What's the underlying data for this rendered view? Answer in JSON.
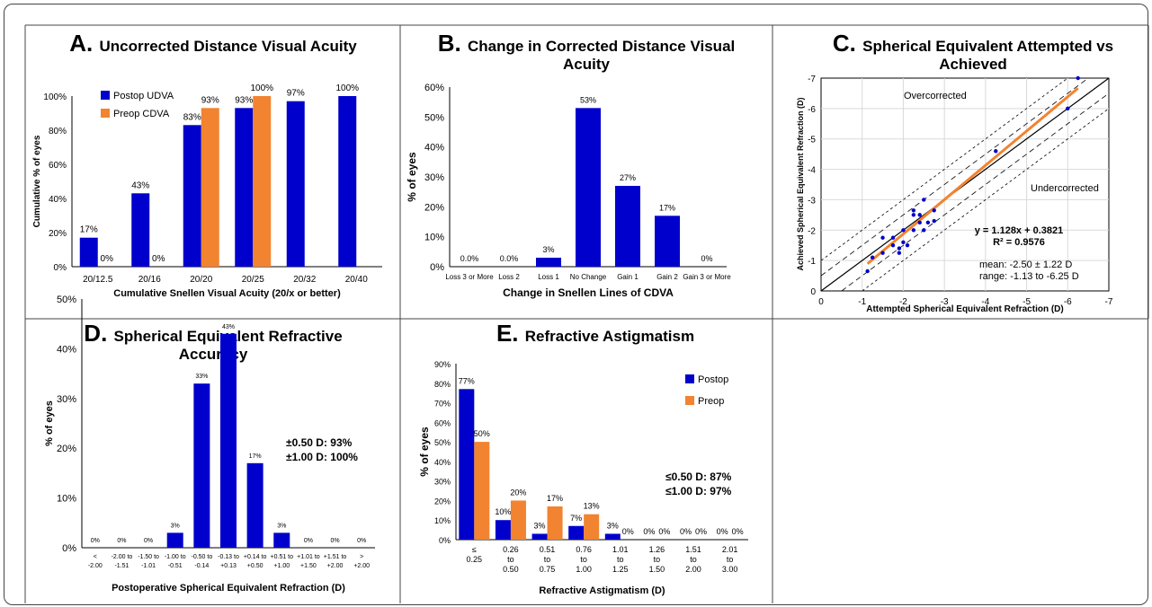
{
  "colors": {
    "blue": "#0000CC",
    "orange": "#F28330",
    "grid": "#d9d9d9",
    "line": "#000000"
  },
  "panels": [
    {
      "letter": "A",
      "title_lines": [
        "Uncorrected Distance Visual Acuity"
      ],
      "type": "bar",
      "ylabel": "Cumulative % of eyes",
      "xlabel": "Cumulative Snellen Visual Acuity (20/x or better)",
      "yticks": [
        "0%",
        "20%",
        "40%",
        "60%",
        "80%",
        "100%"
      ],
      "ymax": 100,
      "categories": [
        "20/12.5",
        "20/16",
        "20/20",
        "20/25",
        "20/32",
        "20/40"
      ],
      "series": [
        {
          "name": "Postop UDVA",
          "color": "#0000CC",
          "values": [
            17,
            43,
            83,
            93,
            97,
            100
          ],
          "labels": [
            "17%",
            "43%",
            "83%",
            "93%",
            "97%",
            "100%"
          ]
        },
        {
          "name": "Preop CDVA",
          "color": "#F28330",
          "values": [
            0,
            0,
            93,
            100,
            null,
            null
          ],
          "labels": [
            "0%",
            "0%",
            "93%",
            "100%",
            "",
            ""
          ]
        }
      ],
      "legend": [
        "Postop UDVA",
        "Preop CDVA"
      ],
      "notes": []
    },
    {
      "letter": "B",
      "title_lines": [
        "Change in Corrected Distance Visual",
        "Acuity"
      ],
      "type": "bar",
      "ylabel": "% of eyes",
      "xlabel": "Change in Snellen Lines of CDVA",
      "yticks": [
        "0%",
        "10%",
        "20%",
        "30%",
        "40%",
        "50%",
        "60%"
      ],
      "ymax": 60,
      "categories": [
        "Loss 3 or More",
        "Loss 2",
        "Loss 1",
        "No Change",
        "Gain 1",
        "Gain 2",
        "Gain 3 or More"
      ],
      "series": [
        {
          "name": "",
          "color": "#0000CC",
          "values": [
            0,
            0,
            3,
            53,
            27,
            17,
            0
          ],
          "labels": [
            "0.0%",
            "0.0%",
            "3%",
            "53%",
            "27%",
            "17%",
            "0%"
          ]
        }
      ],
      "legend": [],
      "notes": []
    },
    {
      "letter": "C",
      "title_lines": [
        "Spherical Equivalent Attempted vs",
        "Achieved"
      ],
      "type": "scatter",
      "xlabel": "Attempted Spherical Equivalent Refraction (D)",
      "ylabel": "Achieved Spherical Equivalent Refraction (D)",
      "ticks": [
        "0",
        "-1",
        "-2",
        "-3",
        "-4",
        "-5",
        "-6",
        "-7"
      ],
      "points": [
        [
          -1.13,
          -0.65
        ],
        [
          -1.25,
          -1.1
        ],
        [
          -1.5,
          -1.25
        ],
        [
          -1.5,
          -1.75
        ],
        [
          -1.75,
          -1.5
        ],
        [
          -1.75,
          -1.75
        ],
        [
          -1.9,
          -1.25
        ],
        [
          -1.9,
          -1.4
        ],
        [
          -2.0,
          -1.6
        ],
        [
          -2.0,
          -2.0
        ],
        [
          -2.1,
          -1.5
        ],
        [
          -2.25,
          -2.0
        ],
        [
          -2.25,
          -2.5
        ],
        [
          -2.25,
          -2.65
        ],
        [
          -2.4,
          -2.25
        ],
        [
          -2.4,
          -2.5
        ],
        [
          -2.5,
          -2.0
        ],
        [
          -2.5,
          -3.0
        ],
        [
          -2.6,
          -2.25
        ],
        [
          -2.75,
          -2.65
        ],
        [
          -2.75,
          -2.3
        ],
        [
          -4.25,
          -4.6
        ],
        [
          -6.0,
          -6.0
        ],
        [
          -6.25,
          -7.0
        ]
      ],
      "regression": {
        "slope": 1.128,
        "intercept": 0.3821
      },
      "annotations": {
        "over": "Overcorrected",
        "under": "Undercorrected",
        "equation": "y = 1.128x + 0.3821",
        "r2": "R² = 0.9576",
        "mean": "mean: -2.50 ± 1.22 D",
        "range": "range: -1.13 to -6.25 D"
      }
    },
    {
      "letter": "D",
      "title_lines": [
        "Spherical Equivalent Refractive",
        "Accuracy"
      ],
      "type": "bar",
      "ylabel": "% of eyes",
      "xlabel": "Postoperative Spherical Equivalent Refraction (D)",
      "yticks": [
        "0%",
        "10%",
        "20%",
        "30%",
        "40%",
        "50%"
      ],
      "ymax": 50,
      "categories": [
        [
          "<",
          "-2.00"
        ],
        [
          "-2.00 to",
          "-1.51"
        ],
        [
          "-1.50 to",
          "-1.01"
        ],
        [
          "-1.00 to",
          "-0.51"
        ],
        [
          "-0.50 to",
          "-0.14"
        ],
        [
          "-0.13 to",
          "+0.13"
        ],
        [
          "+0.14 to",
          "+0.50"
        ],
        [
          "+0.51 to",
          "+1.00"
        ],
        [
          "+1.01 to",
          "+1.50"
        ],
        [
          "+1.51 to",
          "+2.00"
        ],
        [
          ">",
          "+2.00"
        ]
      ],
      "series": [
        {
          "name": "",
          "color": "#0000CC",
          "values": [
            0,
            0,
            0,
            3,
            33,
            43,
            17,
            3,
            0,
            0,
            0
          ],
          "labels": [
            "0%",
            "0%",
            "0%",
            "3%",
            "33%",
            "43%",
            "17%",
            "3%",
            "0%",
            "0%",
            "0%"
          ]
        }
      ],
      "legend": [],
      "notes": [
        "±0.50 D: 93%",
        "±1.00 D: 100%"
      ]
    },
    {
      "letter": "E",
      "title_lines": [
        "Refractive Astigmatism"
      ],
      "type": "bar",
      "ylabel": "% of eyes",
      "xlabel": "Refractive Astigmatism (D)",
      "yticks": [
        "0%",
        "10%",
        "20%",
        "30%",
        "40%",
        "50%",
        "60%",
        "70%",
        "80%",
        "90%"
      ],
      "ymax": 90,
      "categories": [
        [
          "≤",
          "0.25"
        ],
        [
          "0.26",
          "to",
          "0.50"
        ],
        [
          "0.51",
          "to",
          "0.75"
        ],
        [
          "0.76",
          "to",
          "1.00"
        ],
        [
          "1.01",
          "to",
          "1.25"
        ],
        [
          "1.26",
          "to",
          "1.50"
        ],
        [
          "1.51",
          "to",
          "2.00"
        ],
        [
          "2.01",
          "to",
          "3.00"
        ]
      ],
      "series": [
        {
          "name": "Postop",
          "color": "#0000CC",
          "values": [
            77,
            10,
            3,
            7,
            3,
            0,
            0,
            0
          ],
          "labels": [
            "77%",
            "10%",
            "3%",
            "7%",
            "3%",
            "0%",
            "0%",
            "0%"
          ]
        },
        {
          "name": "Preop",
          "color": "#F28330",
          "values": [
            50,
            20,
            17,
            13,
            0,
            0,
            0,
            0
          ],
          "labels": [
            "50%",
            "20%",
            "17%",
            "13%",
            "0%",
            "0%",
            "0%",
            "0%"
          ]
        }
      ],
      "legend": [
        "Postop",
        "Preop"
      ],
      "notes": [
        "≤0.50 D: 87%",
        "≤1.00 D: 97%"
      ]
    }
  ],
  "chart_data": [
    {
      "type": "bar",
      "title": "Uncorrected Distance Visual Acuity",
      "xlabel": "Cumulative Snellen Visual Acuity (20/x or better)",
      "ylabel": "Cumulative % of eyes",
      "categories": [
        "20/12.5",
        "20/16",
        "20/20",
        "20/25",
        "20/32",
        "20/40"
      ],
      "series": [
        {
          "name": "Postop UDVA",
          "values": [
            17,
            43,
            83,
            93,
            97,
            100
          ]
        },
        {
          "name": "Preop CDVA",
          "values": [
            0,
            0,
            93,
            100,
            null,
            null
          ]
        }
      ],
      "ylim": [
        0,
        100
      ]
    },
    {
      "type": "bar",
      "title": "Change in Corrected Distance Visual Acuity",
      "xlabel": "Change in Snellen Lines of CDVA",
      "ylabel": "% of eyes",
      "categories": [
        "Loss 3 or More",
        "Loss 2",
        "Loss 1",
        "No Change",
        "Gain 1",
        "Gain 2",
        "Gain 3 or More"
      ],
      "values": [
        0,
        0,
        3,
        53,
        27,
        17,
        0
      ],
      "ylim": [
        0,
        60
      ]
    },
    {
      "type": "scatter",
      "title": "Spherical Equivalent Attempted vs Achieved",
      "xlabel": "Attempted Spherical Equivalent Refraction (D)",
      "ylabel": "Achieved Spherical Equivalent Refraction (D)",
      "xlim": [
        0,
        -7
      ],
      "ylim": [
        0,
        -7
      ]
    },
    {
      "type": "bar",
      "title": "Spherical Equivalent Refractive Accuracy",
      "xlabel": "Postoperative Spherical Equivalent Refraction (D)",
      "ylabel": "% of eyes",
      "values": [
        0,
        0,
        0,
        3,
        33,
        43,
        17,
        3,
        0,
        0,
        0
      ],
      "ylim": [
        0,
        50
      ]
    },
    {
      "type": "bar",
      "title": "Refractive Astigmatism",
      "xlabel": "Refractive Astigmatism (D)",
      "ylabel": "% of eyes",
      "series": [
        {
          "name": "Postop",
          "values": [
            77,
            10,
            3,
            7,
            3,
            0,
            0,
            0
          ]
        },
        {
          "name": "Preop",
          "values": [
            50,
            20,
            17,
            13,
            0,
            0,
            0,
            0
          ]
        }
      ],
      "ylim": [
        0,
        90
      ]
    }
  ]
}
